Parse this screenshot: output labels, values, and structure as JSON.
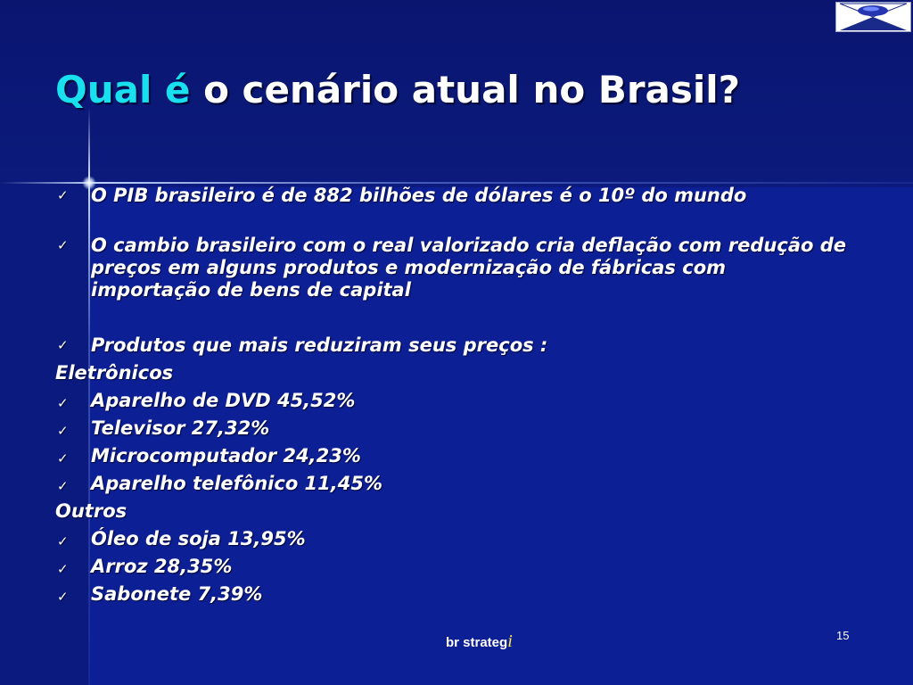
{
  "slide": {
    "title_highlight": "Qual é",
    "title_rest": " o cenário atual no Brasil?",
    "bullet1": "O PIB brasileiro é de 882 bilhões de dólares  é o 10º  do mundo",
    "bullet2_line1": "O cambio brasileiro com o real valorizado cria deflação com redução de",
    "bullet2_line2": "preços em alguns produtos e modernização de fábricas com",
    "bullet2_line3": "importação de bens de capital",
    "bullet3": "Produtos que mais reduziram seus preços :",
    "category1": "Eletrônicos",
    "items1": [
      "Aparelho de DVD  45,52%",
      "Televisor  27,32%",
      "Microcomputador   24,23%",
      "Aparelho telefônico 11,45%"
    ],
    "category2": "Outros",
    "items2": [
      "Óleo de soja 13,95%",
      "Arroz 28,35%",
      "Sabonete 7,39%"
    ],
    "check_glyph": "✓",
    "footer_brand": "br strateg",
    "footer_brand_i": "i",
    "page_number": "15"
  },
  "logo_icon": "diamond-logo-icon",
  "colors": {
    "background": "#0d1f94",
    "title_highlight": "#19e0ee",
    "text": "#ffffff",
    "footer_accent": "#ffe84a"
  }
}
